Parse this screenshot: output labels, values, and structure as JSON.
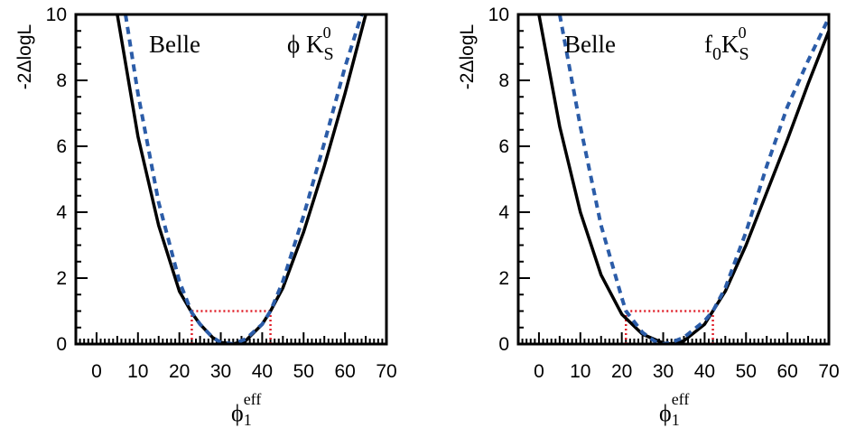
{
  "colors": {
    "frame": "#000000",
    "fit_curve": "#000000",
    "alt_curve": "#2b5ca8",
    "interval": "#e0202a"
  },
  "chart_data": [
    {
      "type": "line",
      "title": "",
      "experiment_label": "Belle",
      "decay_label": {
        "prefix": "ϕ K",
        "sup": "0",
        "sub": "S"
      },
      "xlabel": {
        "base": "ϕ",
        "sup": "eff",
        "sub": "1"
      },
      "ylabel": "-2ΔlogL",
      "xlim": [
        -5,
        70
      ],
      "ylim": [
        0,
        10
      ],
      "xticks": [
        0,
        10,
        20,
        30,
        40,
        50,
        60,
        70
      ],
      "yticks": [
        0,
        2,
        4,
        6,
        8,
        10
      ],
      "series": [
        {
          "style": "solid-black",
          "x": [
            5,
            10,
            15,
            20,
            23,
            25,
            28,
            30,
            33,
            36,
            40,
            42,
            45,
            50,
            55,
            60,
            65
          ],
          "y": [
            10,
            6.3,
            3.6,
            1.6,
            0.95,
            0.6,
            0.2,
            0.05,
            0.0,
            0.1,
            0.6,
            1.0,
            1.7,
            3.4,
            5.4,
            7.6,
            10
          ]
        },
        {
          "style": "dashed-blue",
          "x": [
            7,
            10,
            15,
            20,
            23,
            25,
            28,
            30,
            33,
            36,
            40,
            42,
            45,
            50,
            55,
            60,
            64
          ],
          "y": [
            10,
            7.6,
            4.3,
            1.9,
            0.95,
            0.6,
            0.2,
            0.05,
            0.0,
            0.15,
            0.6,
            1.0,
            1.9,
            3.9,
            6.1,
            8.4,
            10
          ]
        }
      ],
      "interval": {
        "x_low": 23,
        "x_high": 42,
        "y": 1
      }
    },
    {
      "type": "line",
      "title": "",
      "experiment_label": "Belle",
      "decay_label": {
        "prefix": "f",
        "prefix_sub": "0",
        "main": "K",
        "sup": "0",
        "sub": "S"
      },
      "xlabel": {
        "base": "ϕ",
        "sup": "eff",
        "sub": "1"
      },
      "ylabel": "-2ΔlogL",
      "xlim": [
        -5,
        70
      ],
      "ylim": [
        0,
        10
      ],
      "xticks": [
        0,
        10,
        20,
        30,
        40,
        50,
        60,
        70
      ],
      "yticks": [
        0,
        2,
        4,
        6,
        8,
        10
      ],
      "series": [
        {
          "style": "solid-black",
          "x": [
            0,
            5,
            10,
            15,
            20,
            25,
            30,
            32,
            35,
            40,
            45,
            50,
            55,
            60,
            65,
            70
          ],
          "y": [
            10,
            6.6,
            4.0,
            2.1,
            0.9,
            0.3,
            0.03,
            0.0,
            0.1,
            0.6,
            1.6,
            3.0,
            4.6,
            6.2,
            7.9,
            9.5
          ]
        },
        {
          "style": "dashed-blue",
          "x": [
            5,
            10,
            15,
            20,
            21,
            25,
            28,
            30,
            32,
            35,
            40,
            42,
            45,
            50,
            55,
            60,
            65,
            70
          ],
          "y": [
            10,
            6.6,
            3.6,
            1.4,
            1.0,
            0.35,
            0.08,
            0.0,
            0.05,
            0.2,
            0.7,
            1.0,
            1.7,
            3.4,
            5.4,
            7.2,
            8.6,
            9.9
          ]
        }
      ],
      "interval": {
        "x_low": 21,
        "x_high": 42,
        "y": 1
      }
    }
  ]
}
